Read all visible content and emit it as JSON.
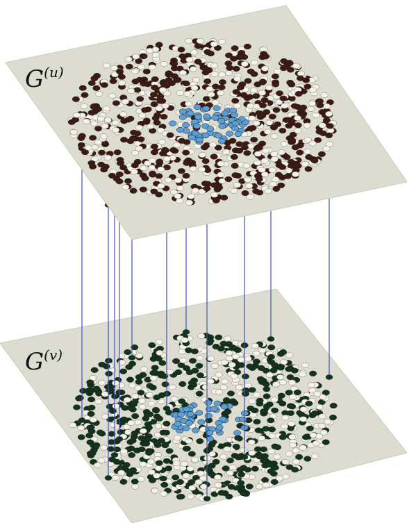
{
  "layers": {
    "upper": {
      "label_base": "G",
      "label_sup": "(u)",
      "node_color_primary": "#3d1a12"
    },
    "lower": {
      "label_base": "G",
      "label_sup": "(v)",
      "node_color_primary": "#14331f"
    }
  },
  "colors": {
    "plane": "#dcdcd0",
    "plane_edge": "#c9c9bb",
    "node_neutral": "#f4f1e8",
    "node_outline": "#7a7a72",
    "node_cluster": "#5b9fd6",
    "interlayer_link": "#3f4fc2"
  }
}
